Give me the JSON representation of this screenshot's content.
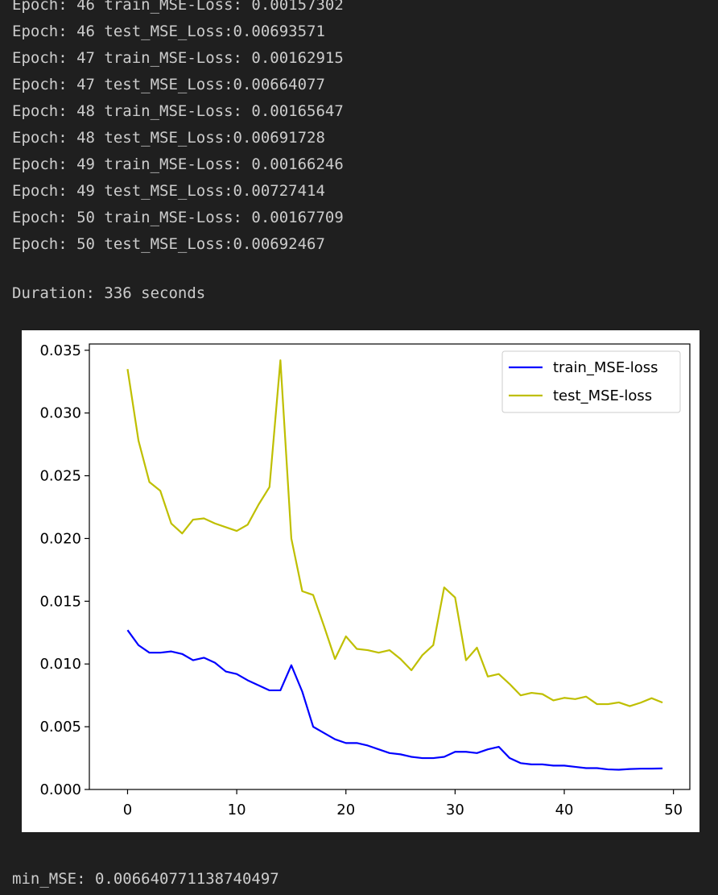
{
  "log_lines": [
    "Epoch: 46 train_MSE-Loss: 0.00157302",
    "Epoch: 46 test_MSE_Loss:0.00693571",
    "Epoch: 47 train_MSE-Loss: 0.00162915",
    "Epoch: 47 test_MSE_Loss:0.00664077",
    "Epoch: 48 train_MSE-Loss: 0.00165647",
    "Epoch: 48 test_MSE_Loss:0.00691728",
    "Epoch: 49 train_MSE-Loss: 0.00166246",
    "Epoch: 49 test_MSE_Loss:0.00727414",
    "Epoch: 50 train_MSE-Loss: 0.00167709",
    "Epoch: 50 test_MSE_Loss:0.00692467"
  ],
  "duration_text": "Duration: 336 seconds",
  "min_mse_text": "min_MSE: 0.006640771138740497",
  "chart_data": {
    "type": "line",
    "title": "",
    "xlabel": "",
    "ylabel": "",
    "xlim": [
      -3.5,
      51.5
    ],
    "ylim": [
      0.0,
      0.0355
    ],
    "x_ticks": [
      0,
      10,
      20,
      30,
      40,
      50
    ],
    "x_tick_labels": [
      "0",
      "10",
      "20",
      "30",
      "40",
      "50"
    ],
    "y_ticks": [
      0.0,
      0.005,
      0.01,
      0.015,
      0.02,
      0.025,
      0.03,
      0.035
    ],
    "y_tick_labels": [
      "0.000",
      "0.005",
      "0.010",
      "0.015",
      "0.020",
      "0.025",
      "0.030",
      "0.035"
    ],
    "grid": false,
    "legend_position": "top-right",
    "x": [
      0,
      1,
      2,
      3,
      4,
      5,
      6,
      7,
      8,
      9,
      10,
      11,
      12,
      13,
      14,
      15,
      16,
      17,
      18,
      19,
      20,
      21,
      22,
      23,
      24,
      25,
      26,
      27,
      28,
      29,
      30,
      31,
      32,
      33,
      34,
      35,
      36,
      37,
      38,
      39,
      40,
      41,
      42,
      43,
      44,
      45,
      46,
      47,
      48,
      49
    ],
    "series": [
      {
        "name": "train_MSE-loss",
        "color": "#0000ff",
        "values": [
          0.0127,
          0.0115,
          0.0109,
          0.0109,
          0.011,
          0.0108,
          0.0103,
          0.0105,
          0.0101,
          0.0094,
          0.0092,
          0.0087,
          0.0083,
          0.0079,
          0.0079,
          0.0099,
          0.0078,
          0.005,
          0.0045,
          0.004,
          0.0037,
          0.0037,
          0.0035,
          0.0032,
          0.0029,
          0.0028,
          0.0026,
          0.0025,
          0.0025,
          0.0026,
          0.003,
          0.003,
          0.0029,
          0.0032,
          0.0034,
          0.0025,
          0.0021,
          0.002,
          0.002,
          0.0019,
          0.0019,
          0.0018,
          0.0017,
          0.0017,
          0.0016,
          0.00157302,
          0.00162915,
          0.00165647,
          0.00166246,
          0.00167709
        ]
      },
      {
        "name": "test_MSE-loss",
        "color": "#bfbf00",
        "values": [
          0.0335,
          0.0278,
          0.0245,
          0.0238,
          0.0212,
          0.0204,
          0.0215,
          0.0216,
          0.0212,
          0.0209,
          0.0206,
          0.0211,
          0.0227,
          0.0241,
          0.0342,
          0.02,
          0.0158,
          0.0155,
          0.013,
          0.0104,
          0.0122,
          0.0112,
          0.0111,
          0.0109,
          0.0111,
          0.0104,
          0.0095,
          0.0107,
          0.0115,
          0.0161,
          0.0153,
          0.0103,
          0.0113,
          0.009,
          0.0092,
          0.0084,
          0.0075,
          0.0077,
          0.0076,
          0.0071,
          0.0073,
          0.0072,
          0.0074,
          0.0068,
          0.0068,
          0.00693571,
          0.00664077,
          0.00691728,
          0.00727414,
          0.00692467
        ]
      }
    ]
  }
}
